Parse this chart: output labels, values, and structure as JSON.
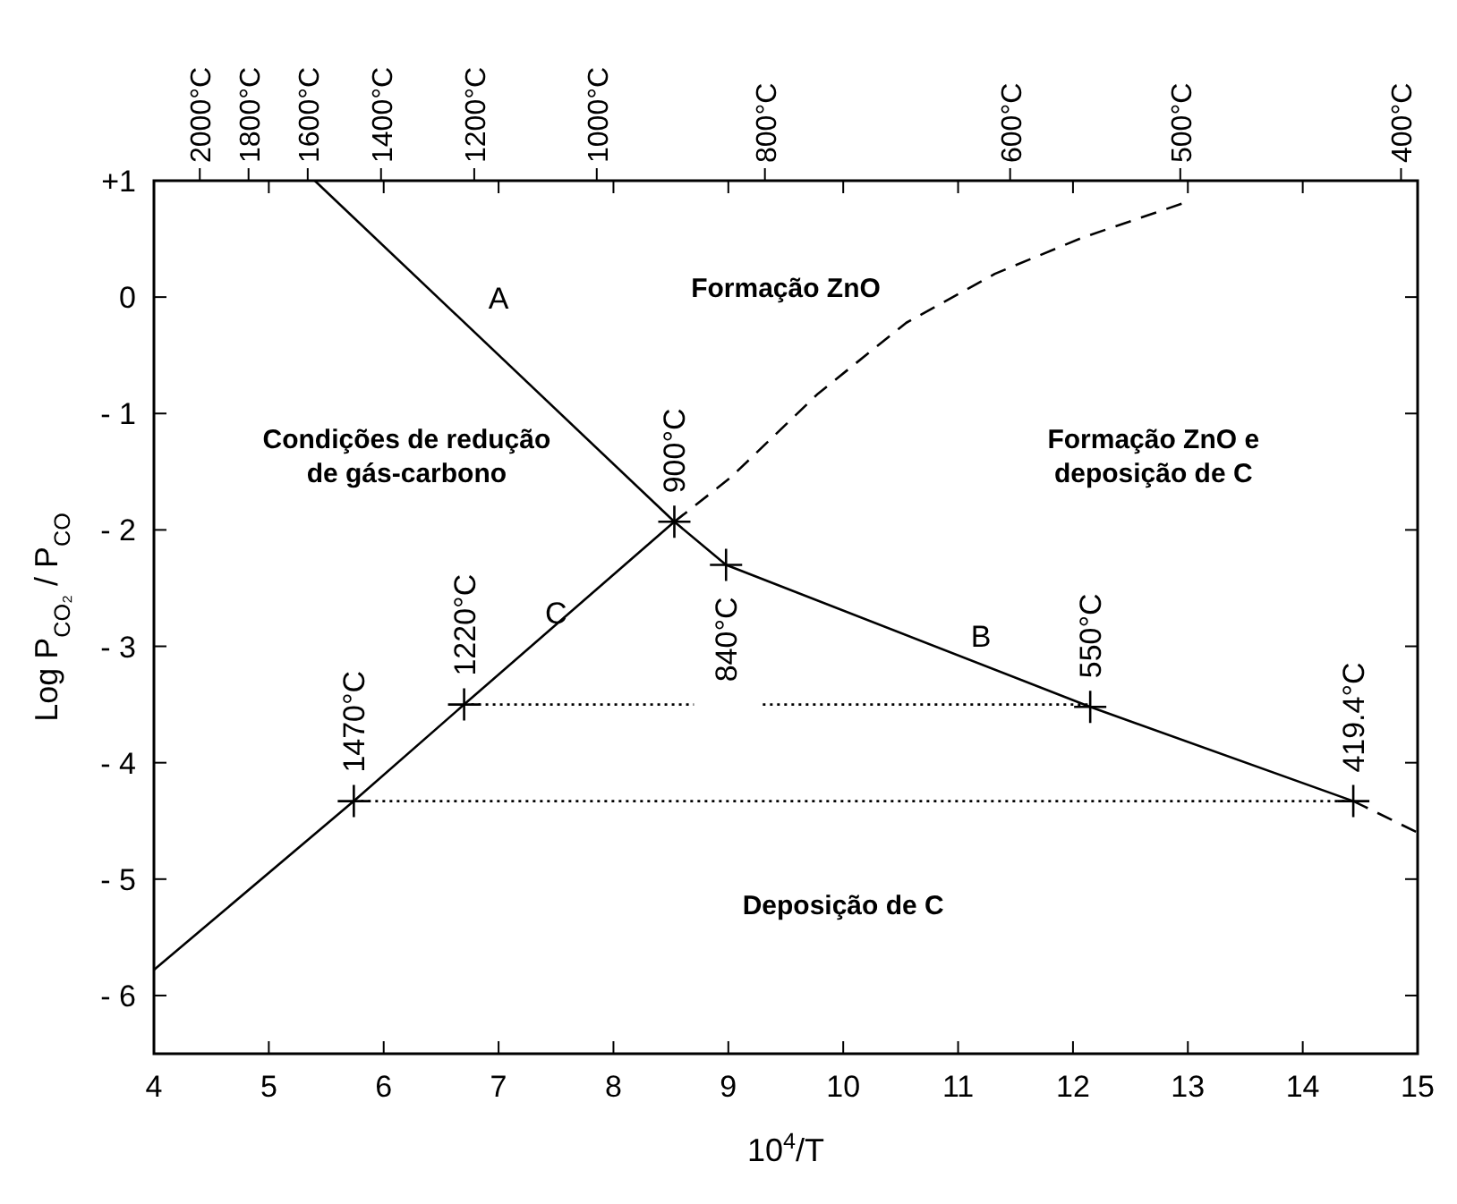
{
  "chart_data": {
    "type": "line",
    "xlabel": "10$^{4}$/T",
    "ylabel": "Log P$_{CO₂}$ / P$_{CO}$",
    "x2label": null,
    "xlim": [
      4,
      15
    ],
    "xticks": [
      4,
      5,
      6,
      7,
      8,
      9,
      10,
      11,
      12,
      13,
      14,
      15
    ],
    "ylim": [
      -6.5,
      1
    ],
    "yticks": [
      {
        "value": 1,
        "label": "+1"
      },
      0,
      {
        "value": -1,
        "label": "- 1"
      },
      {
        "value": -2,
        "label": "- 2"
      },
      {
        "value": -3,
        "label": "- 3"
      },
      {
        "value": -4,
        "label": "- 4"
      },
      {
        "value": -5,
        "label": "- 5"
      },
      {
        "value": -6,
        "label": "- 6"
      }
    ],
    "series": [
      {
        "name": "A",
        "color": "#000000",
        "x": [
          5.4,
          8.53
        ],
        "values": [
          1,
          -1.93
        ]
      },
      {
        "name": "B",
        "color": "#000000",
        "x": [
          8.53,
          8.98,
          12.15,
          14.44
        ],
        "values": [
          -1.93,
          -2.3,
          -3.52,
          -4.33
        ]
      },
      {
        "name": "C",
        "color": "#000000",
        "x": [
          4,
          5.74,
          6.7,
          8.53
        ],
        "values": [
          -5.78,
          -4.33,
          -3.5,
          -1.93
        ]
      },
      {
        "color": "#000000",
        "line_style": "dashed",
        "x": [
          8.53,
          9.02,
          9.78,
          10.55,
          11.32,
          12.08,
          13.0
        ],
        "values": [
          -1.93,
          -1.55,
          -0.83,
          -0.22,
          0.2,
          0.51,
          0.82
        ]
      },
      {
        "color": "#000000",
        "line_style": "dashed",
        "x": [
          14.44,
          15
        ],
        "values": [
          -4.33,
          -4.6
        ]
      },
      {
        "color": "#000000",
        "line_style": "dotted",
        "x": [
          6.7,
          8.7,
          8.95,
          9.3,
          12.15
        ],
        "values": [
          -3.5,
          -3.5,
          null,
          -3.5,
          -3.5
        ]
      },
      {
        "color": "#000000",
        "line_style": "dotted",
        "x": [
          5.74,
          14.44
        ],
        "values": [
          -4.33,
          -4.33
        ]
      },
      {
        "type": "scatter",
        "marker": "cross",
        "color": "#000000",
        "x": [
          5.74,
          6.7,
          8.53,
          8.98,
          12.15,
          14.44
        ],
        "values": [
          -4.33,
          -3.5,
          -1.93,
          -2.3,
          -3.52,
          -4.33
        ]
      }
    ],
    "annotations": [
      "2000°C",
      "1800°C",
      "1600°C",
      "1400°C",
      "1200°C",
      "1000°C",
      "800°C",
      "600°C",
      "500°C",
      "400°C",
      {
        "text": "1470°C",
        "x": 5.74,
        "y": -4.33
      },
      {
        "text": "1220°C",
        "x": 6.7,
        "y": -3.5
      },
      {
        "text": "900°C",
        "x": 8.53,
        "y": -1.93
      },
      {
        "text": "840°C",
        "x": 8.98,
        "y": -2.3
      },
      {
        "text": "550°C",
        "x": 12.15,
        "y": -3.52
      },
      {
        "text": "419.4°C",
        "x": 14.44,
        "y": -4.33
      },
      "Formação ZnO",
      "Condições de redução\nde gás-carbono",
      "Formação ZnO e\ndeposição de C",
      "Deposição de C"
    ]
  }
}
